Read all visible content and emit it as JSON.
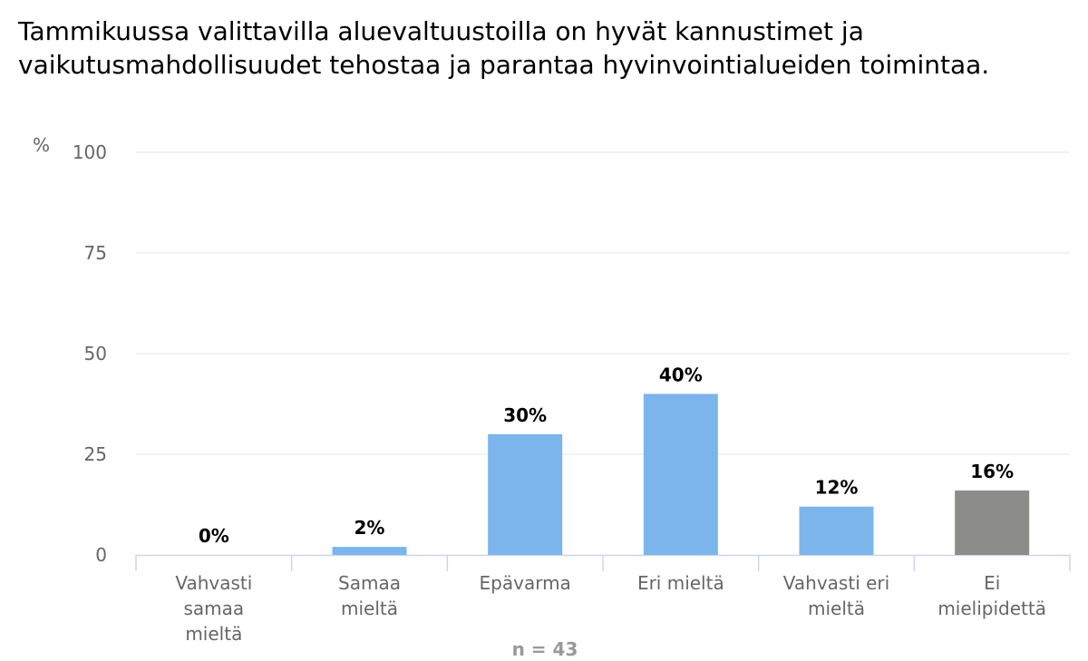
{
  "chart_data": {
    "type": "bar",
    "title": "Tammikuussa valittavilla aluevaltuustoilla on hyvät kannustimet ja vaikutusmahdollisuudet tehostaa ja parantaa hyvinvointialueiden toimintaa.",
    "ylabel": "%",
    "ylim": [
      0,
      100
    ],
    "yticks": [
      0,
      25,
      50,
      75,
      100
    ],
    "grid": true,
    "categories": [
      [
        "Vahvasti",
        "samaa",
        "mieltä"
      ],
      [
        "Samaa",
        "mieltä"
      ],
      [
        "Epävarma"
      ],
      [
        "Eri mieltä"
      ],
      [
        "Vahvasti eri",
        "mieltä"
      ],
      [
        "Ei",
        "mielipidettä"
      ]
    ],
    "values": [
      0,
      2,
      30,
      40,
      12,
      16
    ],
    "data_labels": [
      "0%",
      "2%",
      "30%",
      "40%",
      "12%",
      "16%"
    ],
    "colors": [
      "#7cb5ec",
      "#7cb5ec",
      "#7cb5ec",
      "#7cb5ec",
      "#7cb5ec",
      "#8c8c88"
    ],
    "note": "n = 43"
  }
}
